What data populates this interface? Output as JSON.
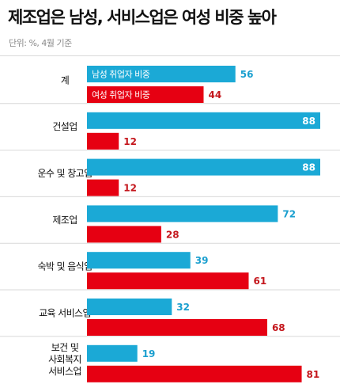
{
  "title": "제조업은 남성, 서비스업은 여성 비중 높아",
  "unit_note": "단위: %, 4월 기준",
  "colors": {
    "male": "#1ba9d6",
    "female": "#e60012",
    "male_text": "#1a9fcf",
    "female_text": "#c4161c",
    "rule": "#d9d9d9"
  },
  "chart_data": {
    "type": "bar",
    "orientation": "horizontal",
    "categories": [
      [
        "계"
      ],
      [
        "건설업"
      ],
      [
        "운수 및 창고업"
      ],
      [
        "제조업"
      ],
      [
        "숙박 및 음식업"
      ],
      [
        "교육 서비스업"
      ],
      [
        "보건 및",
        "사회복지",
        "서비스업"
      ]
    ],
    "series": [
      {
        "name": "남성 취업자 비중",
        "values": [
          56,
          88,
          88,
          72,
          39,
          32,
          19
        ]
      },
      {
        "name": "여성 취업자 비중",
        "values": [
          44,
          12,
          12,
          28,
          61,
          68,
          81
        ]
      }
    ],
    "xlim": [
      0,
      88
    ],
    "grid": false,
    "legend_position": "inside-first-category"
  }
}
